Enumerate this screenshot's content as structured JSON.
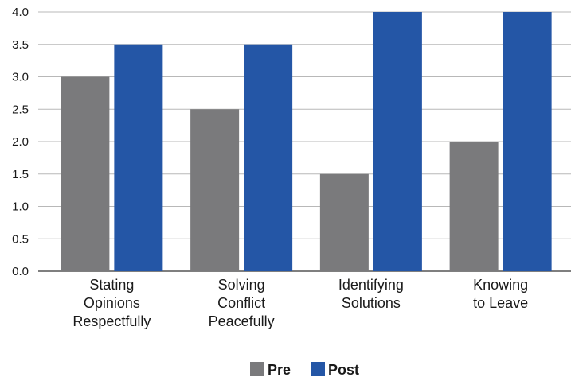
{
  "chart_data": {
    "type": "bar",
    "categories": [
      [
        "Stating",
        "Opinions",
        "Respectfully"
      ],
      [
        "Solving",
        "Conflict",
        "Peacefully"
      ],
      [
        "Identifying",
        "Solutions"
      ],
      [
        "Knowing",
        "to Leave"
      ]
    ],
    "series": [
      {
        "name": "Pre",
        "values": [
          3.0,
          2.5,
          1.5,
          2.0
        ],
        "color": "#7a7a7c"
      },
      {
        "name": "Post",
        "values": [
          3.5,
          3.5,
          4.0,
          4.0
        ],
        "color": "#2456a6"
      }
    ],
    "ylim": [
      0,
      4.0
    ],
    "yticks": [
      "0.0",
      "0.5",
      "1.0",
      "1.5",
      "2.0",
      "2.5",
      "3.0",
      "3.5",
      "4.0"
    ],
    "grid": true,
    "legend_position": "bottom-center"
  }
}
